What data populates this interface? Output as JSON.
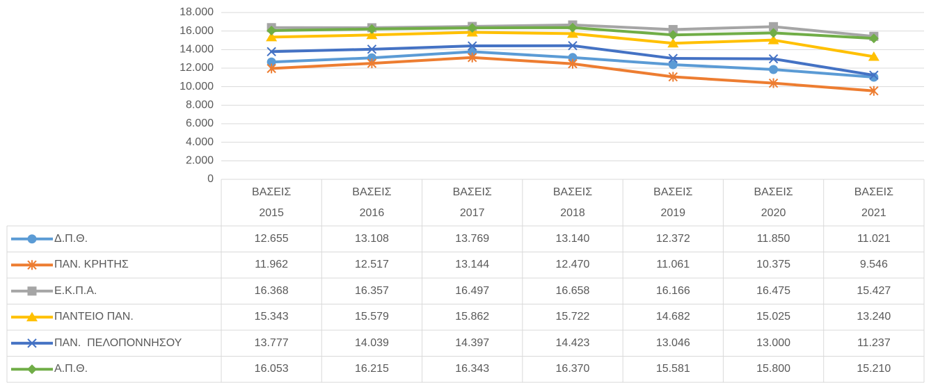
{
  "chart_data": {
    "type": "line",
    "categories": [
      "ΒΑΣΕΙΣ 2015",
      "ΒΑΣΕΙΣ 2016",
      "ΒΑΣΕΙΣ 2017",
      "ΒΑΣΕΙΣ 2018",
      "ΒΑΣΕΙΣ 2019",
      "ΒΑΣΕΙΣ 2020",
      "ΒΑΣΕΙΣ 2021"
    ],
    "ylim": [
      0,
      18000
    ],
    "yticks": [
      0,
      {
        "value": 2000,
        "label": "2.000"
      },
      {
        "value": 4000,
        "label": "4.000"
      },
      {
        "value": 6000,
        "label": "6.000"
      },
      {
        "value": 8000,
        "label": "8.000"
      },
      {
        "value": 10000,
        "label": "10.000"
      },
      {
        "value": 12000,
        "label": "12.000"
      },
      {
        "value": 14000,
        "label": "14.000"
      },
      {
        "value": 16000,
        "label": "16.000"
      },
      {
        "value": 18000,
        "label": "18.000"
      }
    ],
    "grid": true,
    "series": [
      {
        "name": "Δ.Π.Θ.",
        "color": "#5b9bd5",
        "marker": "circle",
        "values": [
          12655,
          13108,
          13769,
          13140,
          12372,
          11850,
          11021
        ],
        "value_labels": [
          "12.655",
          "13.108",
          "13.769",
          "13.140",
          "12.372",
          "11.850",
          "11.021"
        ]
      },
      {
        "name": "ΠΑΝ. ΚΡΗΤΗΣ",
        "color": "#ed7d31",
        "marker": "star",
        "values": [
          11962,
          12517,
          13144,
          12470,
          11061,
          10375,
          9546
        ],
        "value_labels": [
          "11.962",
          "12.517",
          "13.144",
          "12.470",
          "11.061",
          "10.375",
          "9.546"
        ]
      },
      {
        "name": "Ε.Κ.Π.Α.",
        "color": "#a5a5a5",
        "marker": "square",
        "values": [
          16368,
          16357,
          16497,
          16658,
          16166,
          16475,
          15427
        ],
        "value_labels": [
          "16.368",
          "16.357",
          "16.497",
          "16.658",
          "16.166",
          "16.475",
          "15.427"
        ]
      },
      {
        "name": "ΠΑΝΤΕΙΟ ΠΑΝ.",
        "color": "#ffc000",
        "marker": "triangle",
        "values": [
          15343,
          15579,
          15862,
          15722,
          14682,
          15025,
          13240
        ],
        "value_labels": [
          "15.343",
          "15.579",
          "15.862",
          "15.722",
          "14.682",
          "15.025",
          "13.240"
        ]
      },
      {
        "name": "ΠΑΝ.  ΠΕΛΟΠΟΝΝΗΣΟΥ",
        "color": "#4472c4",
        "marker": "x",
        "values": [
          13777,
          14039,
          14397,
          14423,
          13046,
          13000,
          11237
        ],
        "value_labels": [
          "13.777",
          "14.039",
          "14.397",
          "14.423",
          "13.046",
          "13.000",
          "11.237"
        ]
      },
      {
        "name": "Α.Π.Θ.",
        "color": "#70ad47",
        "marker": "diamond",
        "values": [
          16053,
          16215,
          16343,
          16370,
          15581,
          15800,
          15210
        ],
        "value_labels": [
          "16.053",
          "16.215",
          "16.343",
          "16.370",
          "15.581",
          "15.800",
          "15.210"
        ]
      }
    ]
  }
}
